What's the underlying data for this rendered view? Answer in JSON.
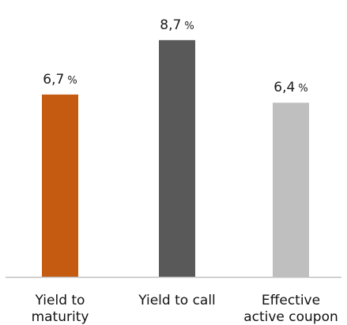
{
  "chart_data": {
    "type": "bar",
    "categories": [
      [
        "Yield to",
        "maturity"
      ],
      [
        "Yield to call"
      ],
      [
        "Effective",
        "active coupon"
      ]
    ],
    "values": [
      6.7,
      8.7,
      6.4
    ],
    "value_labels": [
      "6,7",
      "8,7",
      "6,4"
    ],
    "value_suffix": "%",
    "colors": [
      "#c55a11",
      "#595959",
      "#bfbfbf"
    ],
    "axis_color": "#bfbfbf",
    "ylim": [
      0,
      9.2
    ],
    "title": "",
    "xlabel": "",
    "ylabel": "",
    "grid": false,
    "legend": "none"
  }
}
